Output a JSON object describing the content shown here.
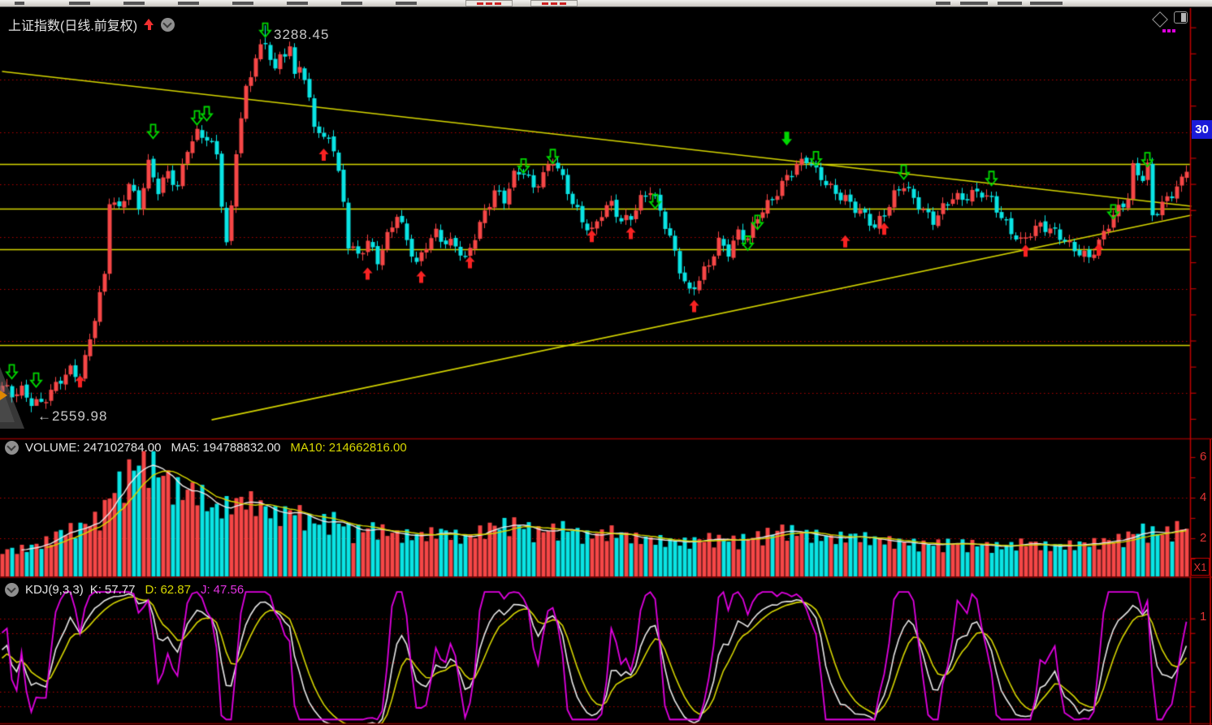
{
  "header": {
    "title": "上证指数(日线.前复权)"
  },
  "overlays": {
    "peak_label": "3288.45",
    "low_label": "←2559.98",
    "right_badge": "30",
    "kdj_axis_label": "1",
    "volume_scale": "X1"
  },
  "volume_header": {
    "name_label": "VOLUME:",
    "value": "247102784.00",
    "ma5_label": "MA5:",
    "ma5_value": "194788832.00",
    "ma10_label": "MA10:",
    "ma10_value": "214662816.00"
  },
  "kdj_header": {
    "name_label": "KDJ(9,3,3)",
    "k_label": "K:",
    "k_value": "57.77",
    "d_label": "D:",
    "d_value": "62.87",
    "j_label": "J:",
    "j_value": "47.56"
  },
  "axis": {
    "volume_labels": [
      "6",
      "4",
      "2"
    ]
  },
  "colors": {
    "up": "#f64646",
    "down": "#0ae4e4",
    "trend": "#d6d600",
    "grid": "#b40000",
    "axis": "#c00000",
    "buy_arrow": "#f82222",
    "sell_arrow": "#00d800",
    "k_line": "#e8e8e8",
    "d_line": "#d6d600",
    "j_line": "#e000e0",
    "badge_bg": "#1b1bd8"
  },
  "chart_data": {
    "type": "candlestick",
    "symbol_title": "上证指数(日线.前复权)",
    "period_count": 244,
    "price_axis": {
      "visible_high": 3288.45,
      "visible_low": 2559.98,
      "grid_prices": [
        3184,
        3083,
        2984,
        2883,
        2783,
        2684,
        2584
      ]
    },
    "price_keyframes": [
      [
        0,
        2594
      ],
      [
        2,
        2578
      ],
      [
        4,
        2591
      ],
      [
        6,
        2572
      ],
      [
        8,
        2567
      ],
      [
        10,
        2583
      ],
      [
        12,
        2606
      ],
      [
        14,
        2629
      ],
      [
        16,
        2619
      ],
      [
        17,
        2653
      ],
      [
        19,
        2730
      ],
      [
        21,
        2805
      ],
      [
        22,
        2950
      ],
      [
        24,
        2935
      ],
      [
        26,
        2990
      ],
      [
        28,
        2945
      ],
      [
        30,
        3020
      ],
      [
        32,
        2968
      ],
      [
        34,
        3005
      ],
      [
        36,
        2982
      ],
      [
        38,
        3058
      ],
      [
        40,
        3080
      ],
      [
        42,
        3068
      ],
      [
        44,
        3040
      ],
      [
        45,
        2950
      ],
      [
        46,
        2870
      ],
      [
        47,
        2945
      ],
      [
        48,
        3055
      ],
      [
        50,
        3165
      ],
      [
        52,
        3222
      ],
      [
        54,
        3255
      ],
      [
        56,
        3200
      ],
      [
        57,
        3238
      ],
      [
        59,
        3245
      ],
      [
        60,
        3192
      ],
      [
        61,
        3215
      ],
      [
        63,
        3138
      ],
      [
        64,
        3098
      ],
      [
        66,
        3068
      ],
      [
        67,
        3082
      ],
      [
        68,
        3058
      ],
      [
        70,
        2952
      ],
      [
        71,
        2868
      ],
      [
        73,
        2842
      ],
      [
        75,
        2872
      ],
      [
        77,
        2842
      ],
      [
        79,
        2888
      ],
      [
        81,
        2927
      ],
      [
        83,
        2872
      ],
      [
        85,
        2827
      ],
      [
        87,
        2872
      ],
      [
        89,
        2896
      ],
      [
        91,
        2872
      ],
      [
        93,
        2864
      ],
      [
        95,
        2834
      ],
      [
        97,
        2888
      ],
      [
        99,
        2934
      ],
      [
        101,
        2972
      ],
      [
        103,
        2950
      ],
      [
        105,
        2997
      ],
      [
        107,
        3012
      ],
      [
        109,
        2982
      ],
      [
        111,
        3004
      ],
      [
        113,
        3028
      ],
      [
        115,
        2989
      ],
      [
        117,
        2950
      ],
      [
        119,
        2919
      ],
      [
        121,
        2896
      ],
      [
        123,
        2927
      ],
      [
        125,
        2942
      ],
      [
        127,
        2912
      ],
      [
        129,
        2927
      ],
      [
        131,
        2958
      ],
      [
        133,
        2972
      ],
      [
        135,
        2927
      ],
      [
        137,
        2880
      ],
      [
        139,
        2826
      ],
      [
        141,
        2780
      ],
      [
        143,
        2802
      ],
      [
        145,
        2826
      ],
      [
        147,
        2872
      ],
      [
        149,
        2858
      ],
      [
        151,
        2896
      ],
      [
        153,
        2880
      ],
      [
        155,
        2918
      ],
      [
        157,
        2942
      ],
      [
        159,
        2972
      ],
      [
        161,
        3004
      ],
      [
        163,
        3020
      ],
      [
        165,
        3028
      ],
      [
        167,
        3004
      ],
      [
        169,
        2989
      ],
      [
        171,
        2972
      ],
      [
        173,
        2958
      ],
      [
        175,
        2934
      ],
      [
        177,
        2919
      ],
      [
        179,
        2903
      ],
      [
        181,
        2934
      ],
      [
        183,
        2966
      ],
      [
        185,
        2981
      ],
      [
        187,
        2950
      ],
      [
        189,
        2934
      ],
      [
        191,
        2919
      ],
      [
        193,
        2942
      ],
      [
        195,
        2958
      ],
      [
        197,
        2950
      ],
      [
        199,
        2966
      ],
      [
        201,
        2972
      ],
      [
        203,
        2958
      ],
      [
        205,
        2919
      ],
      [
        207,
        2888
      ],
      [
        209,
        2872
      ],
      [
        211,
        2896
      ],
      [
        213,
        2911
      ],
      [
        215,
        2896
      ],
      [
        217,
        2880
      ],
      [
        219,
        2864
      ],
      [
        221,
        2857
      ],
      [
        223,
        2849
      ],
      [
        225,
        2872
      ],
      [
        227,
        2903
      ],
      [
        229,
        2934
      ],
      [
        231,
        2960
      ],
      [
        232,
        3020
      ],
      [
        234,
        3000
      ],
      [
        235,
        3018
      ],
      [
        236,
        2922
      ],
      [
        238,
        2940
      ],
      [
        240,
        2965
      ],
      [
        242,
        2995
      ],
      [
        243,
        3020
      ]
    ],
    "trendlines": {
      "descending": [
        [
          0,
          3200
        ],
        [
          244,
          2942
        ]
      ],
      "ascending": [
        [
          43,
          2533
        ],
        [
          244,
          2925
        ]
      ],
      "horizontals": [
        3023,
        2937,
        2860,
        2676
      ]
    },
    "signals": {
      "buy_arrows": [
        [
          16,
          2606
        ],
        [
          66,
          3040
        ],
        [
          75,
          2812
        ],
        [
          86,
          2806
        ],
        [
          96,
          2834
        ],
        [
          121,
          2884
        ],
        [
          129,
          2890
        ],
        [
          142,
          2750
        ],
        [
          173,
          2874
        ],
        [
          181,
          2898
        ],
        [
          210,
          2856
        ],
        [
          225,
          2858
        ]
      ],
      "sell_arrows_hollow": [
        [
          2,
          2626
        ],
        [
          7,
          2610
        ],
        [
          31,
          3086
        ],
        [
          40,
          3112
        ],
        [
          42,
          3120
        ],
        [
          54,
          3280
        ],
        [
          107,
          3020
        ],
        [
          113,
          3038
        ],
        [
          134,
          2952
        ],
        [
          153,
          2872
        ],
        [
          155,
          2912
        ],
        [
          167,
          3034
        ],
        [
          185,
          3008
        ],
        [
          203,
          2996
        ],
        [
          228,
          2932
        ],
        [
          235,
          3032
        ]
      ],
      "sell_arrows_filled": [
        [
          161,
          3072
        ]
      ]
    },
    "volume": {
      "current": 247102784.0,
      "ma5": 194788832.0,
      "ma10": 214662816.0,
      "grid_values": [
        2,
        4
      ],
      "keyframes": [
        [
          0,
          1.3
        ],
        [
          4,
          1.4
        ],
        [
          8,
          1.6
        ],
        [
          12,
          2.2
        ],
        [
          16,
          2.4
        ],
        [
          20,
          2.9
        ],
        [
          23,
          4.2
        ],
        [
          26,
          5.0
        ],
        [
          28,
          5.4
        ],
        [
          30,
          5.6
        ],
        [
          32,
          5.0
        ],
        [
          34,
          4.6
        ],
        [
          37,
          4.0
        ],
        [
          40,
          4.2
        ],
        [
          43,
          3.2
        ],
        [
          46,
          3.4
        ],
        [
          50,
          3.7
        ],
        [
          53,
          3.4
        ],
        [
          56,
          3.0
        ],
        [
          60,
          3.2
        ],
        [
          64,
          2.6
        ],
        [
          68,
          2.8
        ],
        [
          72,
          2.2
        ],
        [
          76,
          2.4
        ],
        [
          80,
          2.1
        ],
        [
          85,
          2.0
        ],
        [
          90,
          2.2
        ],
        [
          95,
          1.9
        ],
        [
          100,
          2.4
        ],
        [
          105,
          2.6
        ],
        [
          110,
          2.2
        ],
        [
          115,
          2.4
        ],
        [
          120,
          2.0
        ],
        [
          125,
          2.2
        ],
        [
          130,
          1.9
        ],
        [
          135,
          1.8
        ],
        [
          140,
          1.7
        ],
        [
          145,
          1.9
        ],
        [
          150,
          1.8
        ],
        [
          155,
          2.0
        ],
        [
          160,
          2.3
        ],
        [
          165,
          2.1
        ],
        [
          170,
          1.9
        ],
        [
          175,
          2.0
        ],
        [
          180,
          1.8
        ],
        [
          185,
          1.7
        ],
        [
          190,
          1.6
        ],
        [
          195,
          1.7
        ],
        [
          200,
          1.6
        ],
        [
          205,
          1.5
        ],
        [
          210,
          1.7
        ],
        [
          215,
          1.5
        ],
        [
          220,
          1.6
        ],
        [
          225,
          1.7
        ],
        [
          230,
          1.9
        ],
        [
          234,
          2.3
        ],
        [
          238,
          2.1
        ],
        [
          241,
          2.4
        ],
        [
          243,
          2.47
        ]
      ]
    },
    "kdj": {
      "params": [
        9,
        3,
        3
      ],
      "k": 57.77,
      "d": 62.87,
      "j": 47.56,
      "grid_values": [
        20,
        30,
        50,
        70,
        80
      ]
    }
  }
}
